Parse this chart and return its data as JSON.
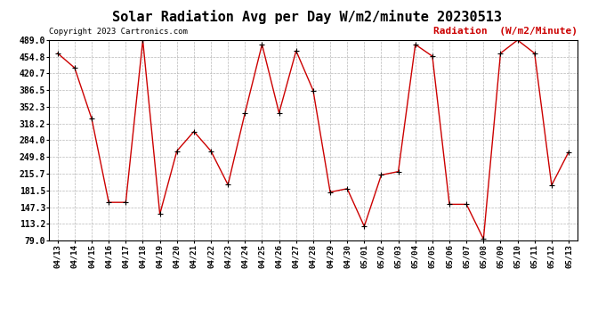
{
  "title": "Solar Radiation Avg per Day W/m2/minute 20230513",
  "copyright": "Copyright 2023 Cartronics.com",
  "legend_label": "Radiation  (W/m2/Minute)",
  "data_points": {
    "04/13": 462,
    "04/14": 432,
    "04/15": 328,
    "04/16": 157,
    "04/17": 157,
    "04/18": 489,
    "04/19": 133,
    "04/20": 262,
    "04/21": 302,
    "04/22": 262,
    "04/23": 193,
    "04/24": 340,
    "04/25": 480,
    "04/26": 340,
    "04/27": 467,
    "04/28": 386,
    "04/29": 178,
    "04/30": 185,
    "05/01": 108,
    "05/02": 213,
    "05/03": 220,
    "05/04": 480,
    "05/05": 456,
    "05/06": 153,
    "05/07": 153,
    "05/08": 82,
    "05/09": 462,
    "05/10": 489,
    "05/11": 462,
    "05/12": 192,
    "05/13": 260
  },
  "yticks": [
    79.0,
    113.2,
    147.3,
    181.5,
    215.7,
    249.8,
    284.0,
    318.2,
    352.3,
    386.5,
    420.7,
    454.8,
    489.0
  ],
  "line_color": "#cc0000",
  "marker_color": "#000000",
  "bg_color": "#ffffff",
  "grid_color": "#b0b0b0",
  "title_fontsize": 11,
  "legend_color": "#cc0000",
  "copyright_color": "#000000"
}
